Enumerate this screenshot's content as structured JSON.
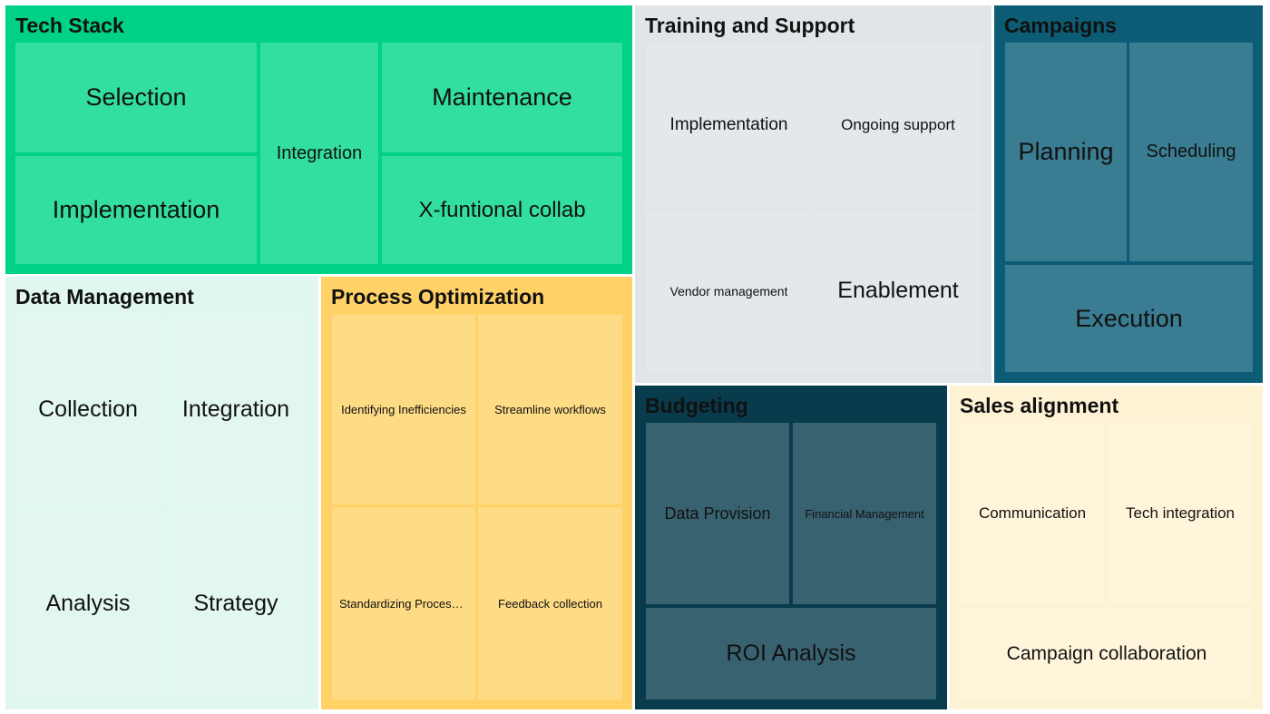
{
  "chart_data": {
    "type": "treemap",
    "groups": [
      {
        "name": "Tech Stack",
        "fill": "#00d285",
        "tile_fill": "#33df9e",
        "text_color": "#111111",
        "items": [
          "Selection",
          "Integration",
          "Maintenance",
          "Implementation",
          "X-funtional collab"
        ]
      },
      {
        "name": "Training and Support",
        "fill": "#dfe5e8",
        "tile_fill": "#e2e8eb",
        "text_color": "#111111",
        "items": [
          "Implementation",
          "Ongoing support",
          "Vendor management",
          "Enablement"
        ]
      },
      {
        "name": "Campaigns",
        "fill": "#0d5c75",
        "tile_fill": "#3a7c91",
        "text_color": "#111111",
        "items": [
          "Planning",
          "Scheduling",
          "Execution"
        ]
      },
      {
        "name": "Data Management",
        "fill": "#e0f6f0",
        "tile_fill": "#e3f7f1",
        "text_color": "#111111",
        "items": [
          "Collection",
          "Integration",
          "Analysis",
          "Strategy"
        ]
      },
      {
        "name": "Process Optimization",
        "fill": "#ffd166",
        "tile_fill": "#fedb85",
        "text_color": "#111111",
        "items": [
          "Identifying Inefficiencies",
          "Streamline workflows",
          "Standardizing Processes",
          "Feedback collection"
        ]
      },
      {
        "name": "Budgeting",
        "fill": "#083b4c",
        "tile_fill": "#396271",
        "text_color": "#111111",
        "items": [
          "Data Provision",
          "Financial Management",
          "ROI Analysis"
        ]
      },
      {
        "name": "Sales alignment",
        "fill": "#fef2d4",
        "tile_fill": "#fff5da",
        "text_color": "#111111",
        "items": [
          "Communication",
          "Tech integration",
          "Campaign collaboration"
        ]
      }
    ]
  }
}
